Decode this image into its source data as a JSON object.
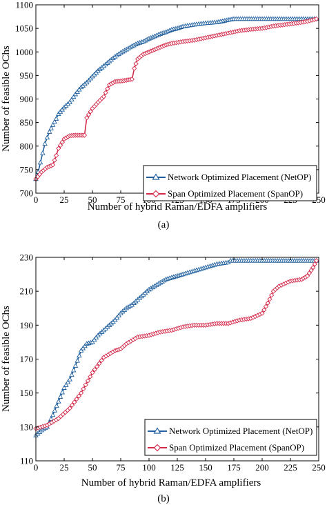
{
  "chart_data": [
    {
      "type": "line",
      "caption": "(a)",
      "xlabel": "Number of hybrid Raman/EDFA amplifiers",
      "ylabel": "Number of feasible OChs",
      "xlim": [
        0,
        250
      ],
      "ylim": [
        700,
        1100
      ],
      "xticks": [
        0,
        25,
        50,
        75,
        100,
        125,
        150,
        175,
        200,
        225,
        250
      ],
      "yticks": [
        700,
        750,
        800,
        850,
        900,
        950,
        1000,
        1050,
        1100
      ],
      "grid": false,
      "legend_position": "lower-right",
      "series": [
        {
          "name": "Network Optimized Placement (NetOP)",
          "color": "#1f5f9e",
          "marker": "triangle",
          "points": [
            [
              0,
              730
            ],
            [
              2,
              745
            ],
            [
              4,
              765
            ],
            [
              6,
              785
            ],
            [
              8,
              805
            ],
            [
              10,
              818
            ],
            [
              12,
              830
            ],
            [
              15,
              845
            ],
            [
              18,
              858
            ],
            [
              20,
              868
            ],
            [
              25,
              882
            ],
            [
              30,
              893
            ],
            [
              35,
              910
            ],
            [
              40,
              925
            ],
            [
              45,
              935
            ],
            [
              50,
              948
            ],
            [
              55,
              960
            ],
            [
              60,
              970
            ],
            [
              65,
              980
            ],
            [
              70,
              990
            ],
            [
              75,
              998
            ],
            [
              80,
              1005
            ],
            [
              85,
              1012
            ],
            [
              90,
              1018
            ],
            [
              95,
              1022
            ],
            [
              100,
              1028
            ],
            [
              105,
              1033
            ],
            [
              110,
              1038
            ],
            [
              115,
              1042
            ],
            [
              120,
              1047
            ],
            [
              125,
              1050
            ],
            [
              130,
              1054
            ],
            [
              140,
              1058
            ],
            [
              150,
              1061
            ],
            [
              160,
              1063
            ],
            [
              165,
              1065
            ],
            [
              170,
              1068
            ],
            [
              175,
              1070
            ],
            [
              200,
              1070
            ],
            [
              225,
              1070
            ],
            [
              248,
              1070
            ]
          ]
        },
        {
          "name": "Span Optimized Placement (SpanOP)",
          "color": "#d42a4a",
          "marker": "diamond",
          "points": [
            [
              0,
              730
            ],
            [
              5,
              745
            ],
            [
              10,
              755
            ],
            [
              15,
              760
            ],
            [
              18,
              780
            ],
            [
              20,
              795
            ],
            [
              25,
              815
            ],
            [
              30,
              822
            ],
            [
              35,
              823
            ],
            [
              40,
              823
            ],
            [
              43,
              823
            ],
            [
              45,
              860
            ],
            [
              50,
              880
            ],
            [
              55,
              893
            ],
            [
              60,
              905
            ],
            [
              65,
              930
            ],
            [
              70,
              937
            ],
            [
              75,
              938
            ],
            [
              80,
              940
            ],
            [
              85,
              942
            ],
            [
              87,
              965
            ],
            [
              90,
              985
            ],
            [
              95,
              995
            ],
            [
              100,
              1000
            ],
            [
              105,
              1005
            ],
            [
              110,
              1010
            ],
            [
              115,
              1015
            ],
            [
              120,
              1018
            ],
            [
              130,
              1022
            ],
            [
              140,
              1025
            ],
            [
              150,
              1030
            ],
            [
              160,
              1035
            ],
            [
              170,
              1040
            ],
            [
              180,
              1045
            ],
            [
              190,
              1048
            ],
            [
              200,
              1050
            ],
            [
              210,
              1055
            ],
            [
              220,
              1058
            ],
            [
              230,
              1061
            ],
            [
              240,
              1065
            ],
            [
              248,
              1070
            ]
          ]
        }
      ]
    },
    {
      "type": "line",
      "caption": "(b)",
      "xlabel": "Number of hybrid Raman/EDFA amplifiers",
      "ylabel": "Number of feasible OChs",
      "xlim": [
        0,
        250
      ],
      "ylim": [
        110,
        230
      ],
      "xticks": [
        0,
        25,
        50,
        75,
        100,
        125,
        150,
        175,
        200,
        225,
        250
      ],
      "yticks": [
        110,
        130,
        150,
        170,
        190,
        210,
        230
      ],
      "grid": false,
      "legend_position": "lower-right",
      "series": [
        {
          "name": "Network Optimized Placement (NetOP)",
          "color": "#1f5f9e",
          "marker": "triangle",
          "points": [
            [
              0,
              125
            ],
            [
              5,
              128
            ],
            [
              10,
              130
            ],
            [
              15,
              137
            ],
            [
              20,
              145
            ],
            [
              25,
              153
            ],
            [
              30,
              158
            ],
            [
              35,
              166
            ],
            [
              40,
              175
            ],
            [
              45,
              179
            ],
            [
              50,
              180
            ],
            [
              55,
              184
            ],
            [
              60,
              187
            ],
            [
              65,
              190
            ],
            [
              70,
              193
            ],
            [
              75,
              197
            ],
            [
              80,
              200
            ],
            [
              85,
              202
            ],
            [
              90,
              205
            ],
            [
              95,
              208
            ],
            [
              100,
              211
            ],
            [
              105,
              213
            ],
            [
              110,
              215
            ],
            [
              115,
              217
            ],
            [
              120,
              218
            ],
            [
              125,
              219
            ],
            [
              130,
              220
            ],
            [
              140,
              222
            ],
            [
              150,
              224
            ],
            [
              160,
              226
            ],
            [
              170,
              227
            ],
            [
              172,
              228
            ],
            [
              200,
              228
            ],
            [
              225,
              228
            ],
            [
              248,
              228
            ]
          ]
        },
        {
          "name": "Span Optimized Placement (SpanOP)",
          "color": "#d42a4a",
          "marker": "diamond",
          "points": [
            [
              0,
              129
            ],
            [
              10,
              131
            ],
            [
              20,
              135
            ],
            [
              30,
              141
            ],
            [
              40,
              150
            ],
            [
              50,
              162
            ],
            [
              60,
              171
            ],
            [
              70,
              175
            ],
            [
              75,
              176
            ],
            [
              80,
              179
            ],
            [
              90,
              183
            ],
            [
              100,
              184
            ],
            [
              110,
              186
            ],
            [
              120,
              187
            ],
            [
              130,
              189
            ],
            [
              140,
              190
            ],
            [
              150,
              190
            ],
            [
              160,
              191
            ],
            [
              170,
              191
            ],
            [
              180,
              193
            ],
            [
              190,
              194
            ],
            [
              200,
              197
            ],
            [
              205,
              203
            ],
            [
              210,
              210
            ],
            [
              215,
              213
            ],
            [
              225,
              216
            ],
            [
              235,
              217
            ],
            [
              240,
              219
            ],
            [
              245,
              224
            ],
            [
              248,
              228
            ]
          ]
        }
      ]
    }
  ]
}
